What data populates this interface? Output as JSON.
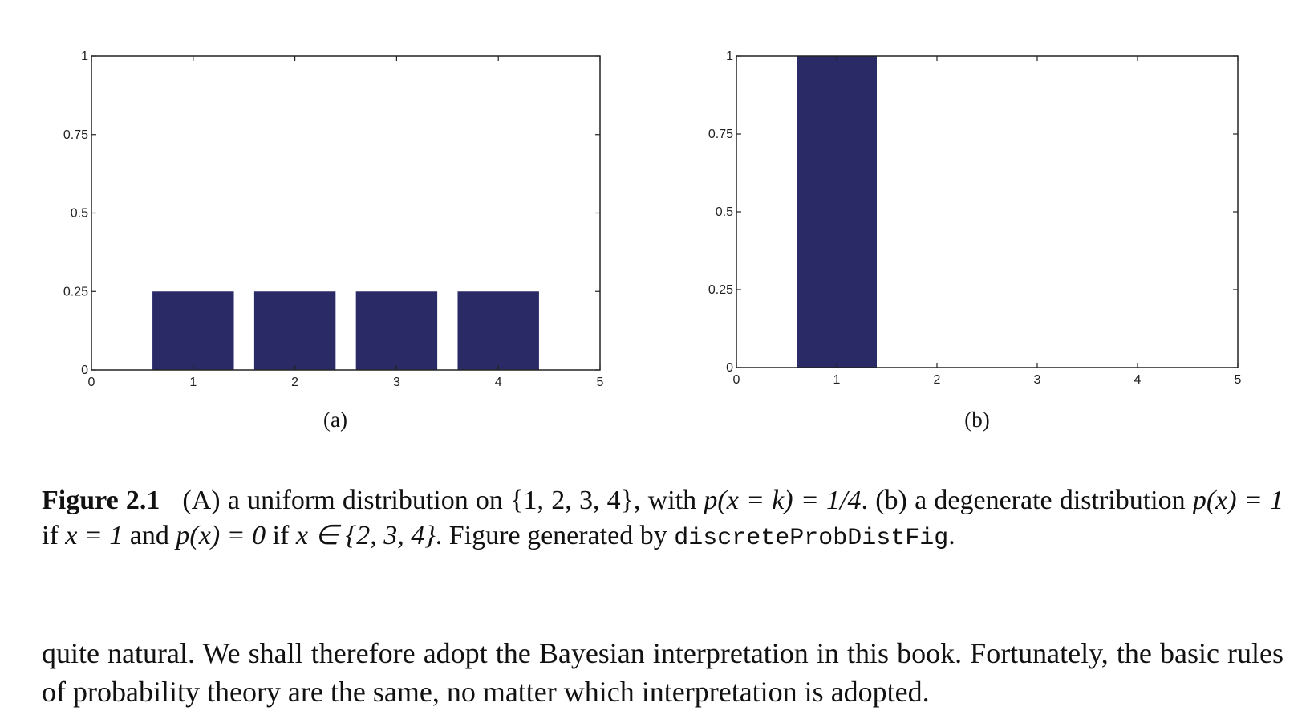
{
  "chart_data": [
    {
      "type": "bar",
      "panel_label": "(a)",
      "x": [
        1,
        2,
        3,
        4
      ],
      "values": [
        0.25,
        0.25,
        0.25,
        0.25
      ],
      "xlim": [
        0,
        5
      ],
      "ylim": [
        0,
        1
      ],
      "xticks": [
        "0",
        "1",
        "2",
        "3",
        "4",
        "5"
      ],
      "yticks": [
        "0",
        "0.25",
        "0.5",
        "0.75",
        "1"
      ],
      "bar_color": "#2a2a66",
      "grid": false
    },
    {
      "type": "bar",
      "panel_label": "(b)",
      "x": [
        1,
        2,
        3,
        4
      ],
      "values": [
        1,
        0,
        0,
        0
      ],
      "xlim": [
        0,
        5
      ],
      "ylim": [
        0,
        1
      ],
      "xticks": [
        "0",
        "1",
        "2",
        "3",
        "4",
        "5"
      ],
      "yticks": [
        "0",
        "0.25",
        "0.5",
        "0.75",
        "1"
      ],
      "bar_color": "#2a2a66",
      "grid": false
    }
  ],
  "caption": {
    "label": "Figure 2.1",
    "a1": "(A) a uniform distribution on ",
    "set1": "{1, 2, 3, 4}",
    "a2": ", with ",
    "eq1": "p(x = k) = 1/4",
    "a3": ". (b) a degenerate distribution ",
    "eq2": "p(x) = 1",
    "a4": " if ",
    "eq3": "x = 1",
    "a5": " and ",
    "eq4": "p(x) = 0",
    "a6": " if ",
    "eq5": "x ∈ {2, 3, 4}",
    "a7": ". Figure generated by ",
    "code": "discreteProbDistFig",
    "a8": "."
  },
  "body_text": "quite natural. We shall therefore adopt the Bayesian interpretation in this book. Fortunately, the basic rules of probability theory are the same, no matter which interpretation is adopted."
}
